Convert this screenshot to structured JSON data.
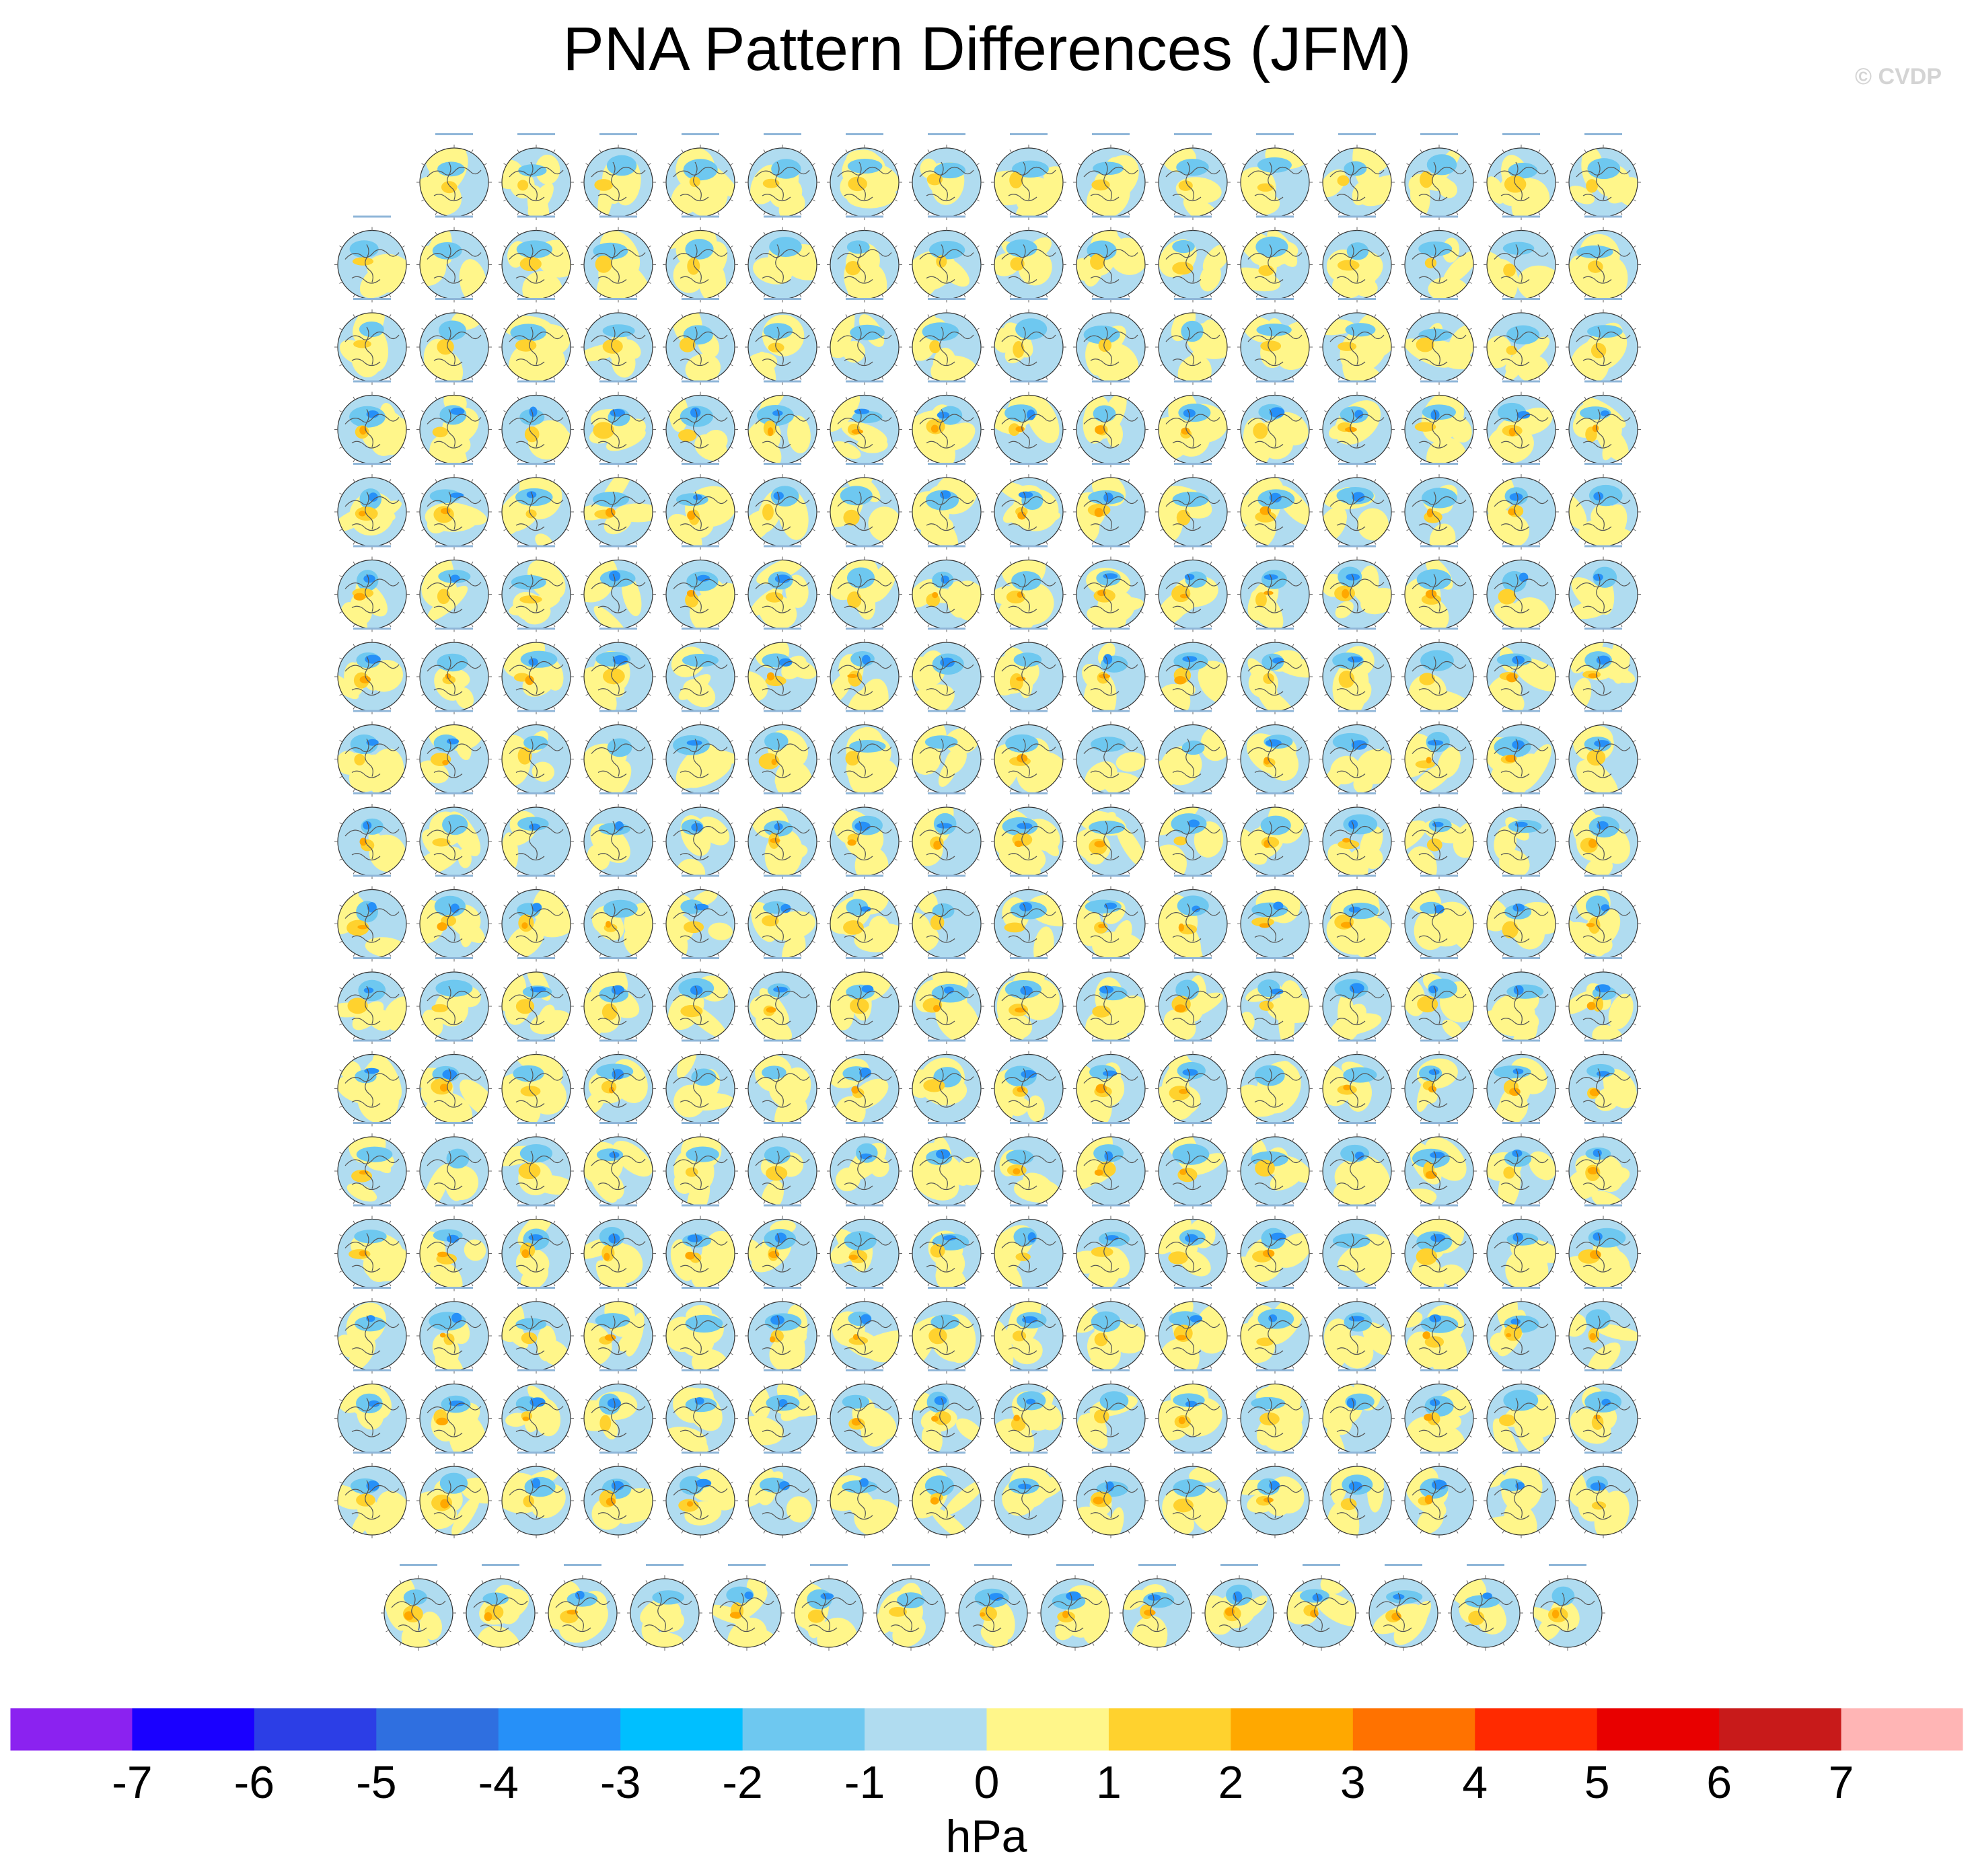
{
  "title": "PNA Pattern Differences (JFM)",
  "watermark": "© CVDP",
  "chart_data": {
    "type": "heatmap",
    "description_kind": "small-multiples of polar stereographic maps (Northern Hemisphere), colored by sea-level pressure difference",
    "panel_rows": [
      15,
      16,
      16,
      16,
      16,
      16,
      16,
      16,
      16,
      16,
      16,
      16,
      16,
      16,
      16,
      16,
      16,
      15
    ],
    "panel_total": 286,
    "colorbar": {
      "unit_label": "hPa",
      "tick_labels": [
        "-7",
        "-6",
        "-5",
        "-4",
        "-3",
        "-2",
        "-1",
        "0",
        "1",
        "2",
        "3",
        "4",
        "5",
        "6",
        "7"
      ],
      "levels": [
        -7,
        -6,
        -5,
        -4,
        -3,
        -2,
        -1,
        0,
        1,
        2,
        3,
        4,
        5,
        6,
        7
      ],
      "colors": [
        "#8b22f0",
        "#1a00ff",
        "#2c3ee6",
        "#2f6fe0",
        "#2690f8",
        "#00bfff",
        "#6ec8f0",
        "#b0dcf0",
        "#fff68a",
        "#ffd22e",
        "#ffa800",
        "#ff7200",
        "#ff2a00",
        "#e80000",
        "#c81a1a",
        "#ffb5b5"
      ]
    },
    "map_colors": {
      "ocean_light_blue": "#b0dcf0",
      "mid_blue": "#6ec8f0",
      "deep_blue": "#2690f8",
      "yellow": "#fff68a",
      "gold": "#ffd22e",
      "orange": "#ffa800",
      "coast": "#555555"
    }
  }
}
